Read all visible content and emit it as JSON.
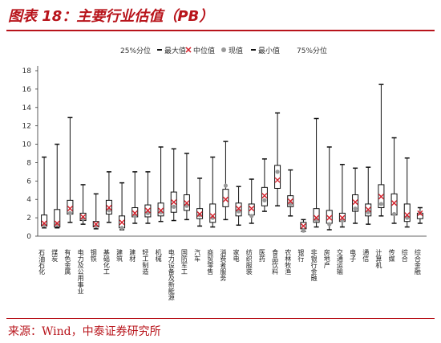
{
  "header": {
    "title": "图表 18：主要行业估值（PB）"
  },
  "footer": {
    "source": "来源：Wind，中泰证券研究所"
  },
  "colors": {
    "accent": "#b8141b",
    "box": "#111111",
    "median": "#d6202b",
    "current": "#999999"
  },
  "chart_data": {
    "type": "box",
    "title": "",
    "xlabel": "",
    "ylabel": "",
    "ylim": [
      0,
      18
    ],
    "yticks": [
      0,
      2,
      4,
      6,
      8,
      10,
      12,
      14,
      16,
      18
    ],
    "legend": [
      "25%分位",
      "最大值",
      "中位值",
      "现值",
      "最小值",
      "75%分位"
    ],
    "legend_position": "top",
    "categories": [
      "石油石化",
      "煤炭",
      "有色金属",
      "电力及公用事业",
      "钢铁",
      "基础化工",
      "建筑",
      "建材",
      "轻工制造",
      "机械",
      "电力设备及新能源",
      "国防军工",
      "汽车",
      "商贸零售",
      "消费者服务",
      "家电",
      "纺织服装",
      "医药",
      "食品饮料",
      "农林牧渔",
      "银行",
      "非银行金融",
      "房地产",
      "交通运输",
      "电子",
      "通信",
      "计算机",
      "传媒",
      "综合",
      "综合金融"
    ],
    "series": {
      "min": [
        0.9,
        0.9,
        1.5,
        1.3,
        0.8,
        1.5,
        0.7,
        1.4,
        1.4,
        1.6,
        1.7,
        1.8,
        1.1,
        1.0,
        1.8,
        1.2,
        1.4,
        2.7,
        3.3,
        2.2,
        0.5,
        1.0,
        0.7,
        1.0,
        1.4,
        1.3,
        2.2,
        1.4,
        1.0,
        1.4
      ],
      "q25": [
        1.1,
        1.0,
        2.4,
        1.7,
        1.0,
        2.4,
        0.9,
        2.1,
        2.1,
        2.2,
        2.6,
        2.8,
        1.9,
        1.5,
        3.2,
        2.2,
        2.3,
        3.3,
        5.2,
        3.2,
        0.8,
        1.5,
        1.4,
        1.6,
        2.7,
        2.2,
        3.1,
        2.3,
        1.6,
        1.9
      ],
      "median": [
        1.4,
        1.4,
        3.0,
        2.1,
        1.3,
        3.1,
        1.5,
        2.5,
        2.8,
        2.8,
        3.7,
        3.6,
        2.4,
        2.2,
        4.0,
        3.0,
        3.0,
        4.4,
        6.1,
        3.8,
        1.1,
        2.0,
        2.0,
        2.0,
        3.7,
        2.9,
        4.3,
        3.6,
        2.3,
        2.5
      ],
      "current": [
        1.2,
        1.3,
        2.5,
        1.9,
        1.1,
        2.8,
        0.9,
        2.2,
        2.5,
        2.6,
        3.2,
        3.3,
        2.3,
        2.0,
        5.5,
        2.7,
        2.2,
        3.9,
        7.0,
        3.5,
        0.6,
        1.8,
        1.3,
        1.7,
        3.0,
        2.6,
        3.5,
        2.4,
        2.0,
        2.5
      ],
      "q75": [
        2.3,
        2.9,
        3.9,
        2.5,
        1.6,
        3.9,
        2.2,
        3.1,
        3.4,
        3.6,
        4.8,
        4.5,
        3.0,
        3.5,
        5.1,
        3.6,
        3.5,
        5.3,
        7.7,
        4.4,
        1.5,
        3.0,
        2.8,
        2.5,
        4.5,
        3.5,
        5.6,
        4.6,
        3.5,
        2.5
      ],
      "max": [
        8.6,
        10.0,
        12.9,
        5.6,
        4.6,
        7.0,
        5.8,
        7.0,
        7.0,
        9.7,
        9.5,
        9.0,
        6.3,
        8.6,
        10.3,
        5.4,
        6.2,
        8.4,
        13.4,
        7.2,
        1.8,
        12.8,
        9.7,
        7.8,
        7.4,
        7.5,
        16.5,
        10.7,
        8.5,
        3.1
      ]
    }
  }
}
